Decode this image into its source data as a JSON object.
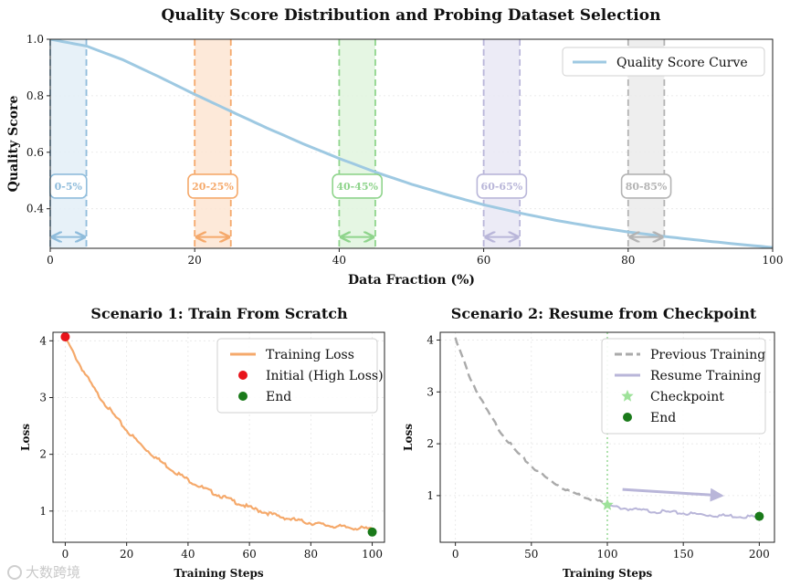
{
  "figure_title": "Quality Score Distribution and Probing Dataset Selection",
  "watermark": "大数跨境",
  "chart_data": [
    {
      "type": "line",
      "title": "Quality Score Distribution and Probing Dataset Selection",
      "xlabel": "Data Fraction (%)",
      "ylabel": "Quality Score",
      "xlim": [
        0,
        100
      ],
      "ylim": [
        0.26,
        1.0
      ],
      "xticks": [
        0,
        20,
        40,
        60,
        80,
        100
      ],
      "yticks": [
        0.4,
        0.6,
        0.8,
        1.0
      ],
      "xtick_labels": [
        "0",
        "20",
        "40",
        "60",
        "80",
        "100"
      ],
      "ytick_labels": [
        "0.4",
        "0.6",
        "0.8",
        "1.0"
      ],
      "series": [
        {
          "name": "Quality Score Curve",
          "color": "#9ec9e2",
          "x": [
            0,
            5,
            10,
            15,
            20,
            25,
            30,
            35,
            40,
            45,
            50,
            55,
            60,
            65,
            70,
            75,
            80,
            85,
            90,
            95,
            100
          ],
          "y": [
            1.0,
            0.976,
            0.928,
            0.868,
            0.805,
            0.745,
            0.686,
            0.63,
            0.578,
            0.53,
            0.487,
            0.449,
            0.414,
            0.385,
            0.359,
            0.337,
            0.318,
            0.302,
            0.288,
            0.275,
            0.263
          ]
        }
      ],
      "bands": [
        {
          "label": "0-5%",
          "x0": 0,
          "x1": 5,
          "color": "#8fbcdb",
          "fill": "#e3eef7"
        },
        {
          "label": "20-25%",
          "x0": 20,
          "x1": 25,
          "color": "#f5a96b",
          "fill": "#fde5d2"
        },
        {
          "label": "40-45%",
          "x0": 40,
          "x1": 45,
          "color": "#8fd48c",
          "fill": "#e1f5de"
        },
        {
          "label": "60-65%",
          "x0": 60,
          "x1": 65,
          "color": "#b9b6d9",
          "fill": "#e9e8f4"
        },
        {
          "label": "80-85%",
          "x0": 80,
          "x1": 85,
          "color": "#b3b3b3",
          "fill": "#ebebeb"
        }
      ],
      "band_label_y": 0.48,
      "band_arrow_y": 0.3,
      "legend": {
        "position": "top-right",
        "entries": [
          "Quality Score Curve"
        ]
      },
      "grid": true
    },
    {
      "type": "line",
      "title": "Scenario 1: Train From Scratch",
      "xlabel": "Training Steps",
      "ylabel": "Loss",
      "xlim": [
        -4,
        104
      ],
      "ylim": [
        0.45,
        4.15
      ],
      "xticks": [
        0,
        20,
        40,
        60,
        80,
        100
      ],
      "yticks": [
        1,
        2,
        3,
        4
      ],
      "xtick_labels": [
        "0",
        "20",
        "40",
        "60",
        "80",
        "100"
      ],
      "ytick_labels": [
        "1",
        "2",
        "3",
        "4"
      ],
      "series": [
        {
          "name": "Training Loss",
          "color": "#f5a96b",
          "x": [
            0,
            5,
            10,
            15,
            20,
            25,
            30,
            35,
            40,
            45,
            50,
            55,
            60,
            65,
            70,
            75,
            80,
            85,
            90,
            95,
            100
          ],
          "y": [
            4.05,
            3.55,
            3.1,
            2.75,
            2.42,
            2.15,
            1.92,
            1.72,
            1.55,
            1.4,
            1.28,
            1.17,
            1.06,
            0.98,
            0.9,
            0.84,
            0.79,
            0.75,
            0.72,
            0.7,
            0.68
          ]
        },
        {
          "name": "Initial (High Loss)",
          "color": "#e8141b",
          "marker": "circle",
          "x": [
            0
          ],
          "y": [
            4.07
          ]
        },
        {
          "name": "End",
          "color": "#1a7a1a",
          "marker": "circle",
          "x": [
            100
          ],
          "y": [
            0.63
          ]
        }
      ],
      "legend": {
        "position": "top-right",
        "entries": [
          "Training Loss",
          "Initial (High Loss)",
          "End"
        ]
      },
      "grid": true
    },
    {
      "type": "line",
      "title": "Scenario 2: Resume from Checkpoint",
      "xlabel": "Training Steps",
      "ylabel": "Loss",
      "xlim": [
        -10,
        210
      ],
      "ylim": [
        0.1,
        4.15
      ],
      "xticks": [
        0,
        50,
        100,
        150,
        200
      ],
      "yticks": [
        1,
        2,
        3,
        4
      ],
      "xtick_labels": [
        "0",
        "50",
        "100",
        "150",
        "200"
      ],
      "ytick_labels": [
        "1",
        "2",
        "3",
        "4"
      ],
      "series": [
        {
          "name": "Previous Training",
          "color": "#aaaaaa",
          "style": "dashed",
          "x": [
            0,
            10,
            20,
            30,
            40,
            50,
            60,
            70,
            80,
            90,
            100
          ],
          "y": [
            4.02,
            3.25,
            2.68,
            2.22,
            1.85,
            1.57,
            1.34,
            1.16,
            1.03,
            0.93,
            0.85
          ]
        },
        {
          "name": "Resume Training",
          "color": "#b9b6d9",
          "x": [
            100,
            110,
            120,
            130,
            140,
            150,
            160,
            170,
            180,
            190,
            200
          ],
          "y": [
            0.8,
            0.76,
            0.72,
            0.7,
            0.68,
            0.66,
            0.64,
            0.62,
            0.61,
            0.6,
            0.59
          ]
        },
        {
          "name": "Checkpoint",
          "color": "#9ee29a",
          "marker": "star",
          "x": [
            100
          ],
          "y": [
            0.82
          ]
        },
        {
          "name": "End",
          "color": "#1a7a1a",
          "marker": "circle",
          "x": [
            200
          ],
          "y": [
            0.6
          ]
        }
      ],
      "checkpoint_vline_x": 100,
      "annotation_arrow": {
        "from": [
          110,
          1.12
        ],
        "to": [
          175,
          1.0
        ]
      },
      "legend": {
        "position": "top-right",
        "entries": [
          "Previous Training",
          "Resume Training",
          "Checkpoint",
          "End"
        ]
      },
      "grid": true
    }
  ]
}
